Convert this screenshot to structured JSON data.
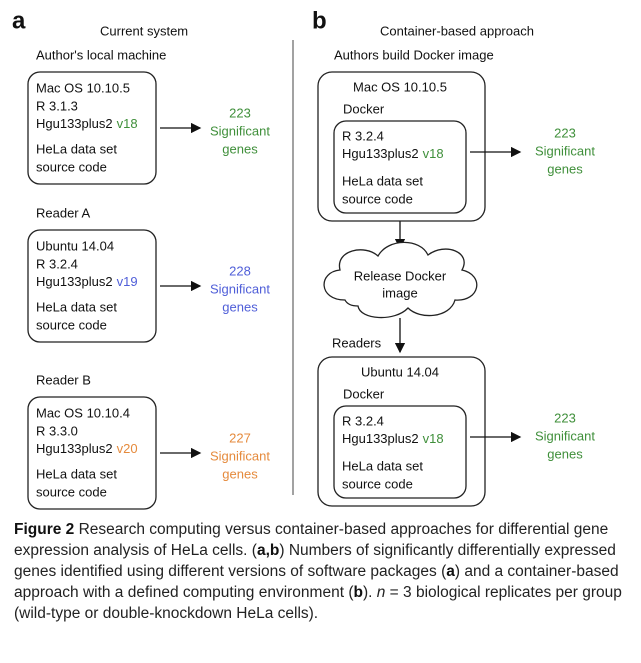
{
  "panel_a": {
    "label": "a",
    "title": "Current system",
    "rows": [
      {
        "heading": "Author's local machine",
        "os": "Mac OS 10.10.5",
        "r": "R 3.1.3",
        "package": "Hgu133plus2",
        "version": "v18",
        "data": "HeLa data set",
        "code": "source code",
        "count": 223,
        "result_1": "Significant",
        "result_2": "genes"
      },
      {
        "heading": "Reader A",
        "os": "Ubuntu 14.04",
        "r": "R 3.2.4",
        "package": "Hgu133plus2",
        "version": "v19",
        "data": "HeLa data set",
        "code": "source code",
        "count": 228,
        "result_1": "Significant",
        "result_2": "genes"
      },
      {
        "heading": "Reader B",
        "os": "Mac OS 10.10.4",
        "r": "R 3.3.0",
        "package": "Hgu133plus2",
        "version": "v20",
        "data": "HeLa data set",
        "code": "source code",
        "count": 227,
        "result_1": "Significant",
        "result_2": "genes"
      }
    ]
  },
  "panel_b": {
    "label": "b",
    "title": "Container-based approach",
    "cloud_1": "Release Docker",
    "cloud_2": "image",
    "rows": [
      {
        "heading": "Authors build Docker image",
        "os": "Mac OS 10.10.5",
        "docker": "Docker",
        "r": "R 3.2.4",
        "package": "Hgu133plus2",
        "version": "v18",
        "data": "HeLa data set",
        "code": "source code",
        "count": 223,
        "result_1": "Significant",
        "result_2": "genes"
      },
      {
        "heading": "Readers",
        "os": "Ubuntu 14.04",
        "docker": "Docker",
        "r": "R 3.2.4",
        "package": "Hgu133plus2",
        "version": "v18",
        "data": "HeLa data set",
        "code": "source code",
        "count": 223,
        "result_1": "Significant",
        "result_2": "genes"
      }
    ]
  },
  "caption": {
    "figure": "Figure 2",
    "parts": [
      " Research computing versus container-based approaches for differential gene expression analysis of HeLa cells. (",
      "a,b",
      ") Numbers of significantly differentially expressed genes identified using different versions of software packages (",
      "a",
      ") and a container-based approach with a defined computing environment (",
      "b",
      "). ",
      "n",
      " = 3 biological replicates per group (wild-type or double-knockdown HeLa cells)."
    ]
  }
}
